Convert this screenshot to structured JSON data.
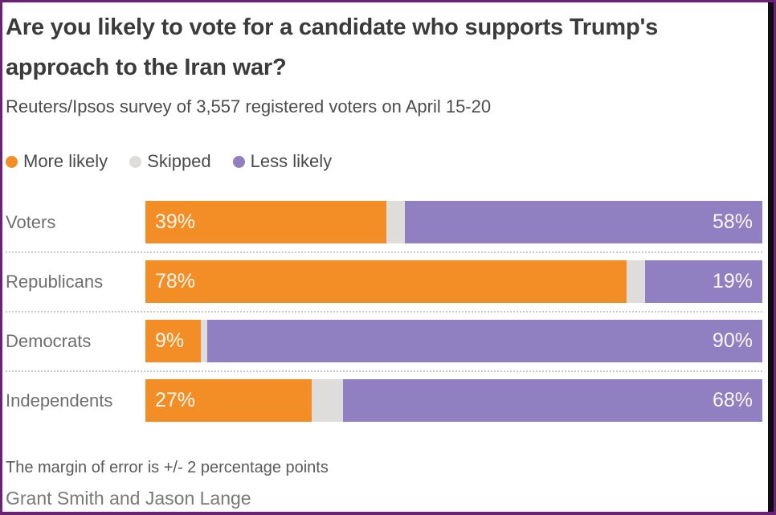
{
  "frame": {
    "border_color": "#6D2077",
    "right_strip_color": "#0F0C12",
    "background": "#FFFFFF"
  },
  "header": {
    "title": "Are you likely to vote for a candidate who supports Trump's approach to the Iran war?",
    "subtitle": "Reuters/Ipsos survey of 3,557 registered voters on April 15-20"
  },
  "footer": {
    "note": "The margin of error is +/- 2 percentage points",
    "byline": "Grant Smith and Jason Lange"
  },
  "chart_data": {
    "type": "bar",
    "orientation": "horizontal",
    "stacked": true,
    "title": "Are you likely to vote for a candidate who supports Trump's approach to the Iran war?",
    "subtitle": "Reuters/Ipsos survey of 3,557 registered voters on April 15-20",
    "categories": [
      "Voters",
      "Republicans",
      "Democrats",
      "Independents"
    ],
    "series": [
      {
        "name": "More likely",
        "color": "#F28E25",
        "values": [
          39,
          78,
          9,
          27
        ],
        "labels_visible": true,
        "label_position": "inside-left"
      },
      {
        "name": "Skipped",
        "color": "#DEDDDB",
        "values": [
          3,
          3,
          1,
          5
        ],
        "labels_visible": false,
        "label_position": "none"
      },
      {
        "name": "Less likely",
        "color": "#9080C1",
        "values": [
          58,
          19,
          90,
          68
        ],
        "labels_visible": true,
        "label_position": "inside-right"
      }
    ],
    "value_suffix": "%",
    "value_label_color": "#FAF7F0",
    "xlim": [
      0,
      100
    ],
    "grid": false,
    "row_separator_style": "dotted",
    "legend": {
      "position": "top-left",
      "entries": [
        "More likely",
        "Skipped",
        "Less likely"
      ]
    }
  }
}
